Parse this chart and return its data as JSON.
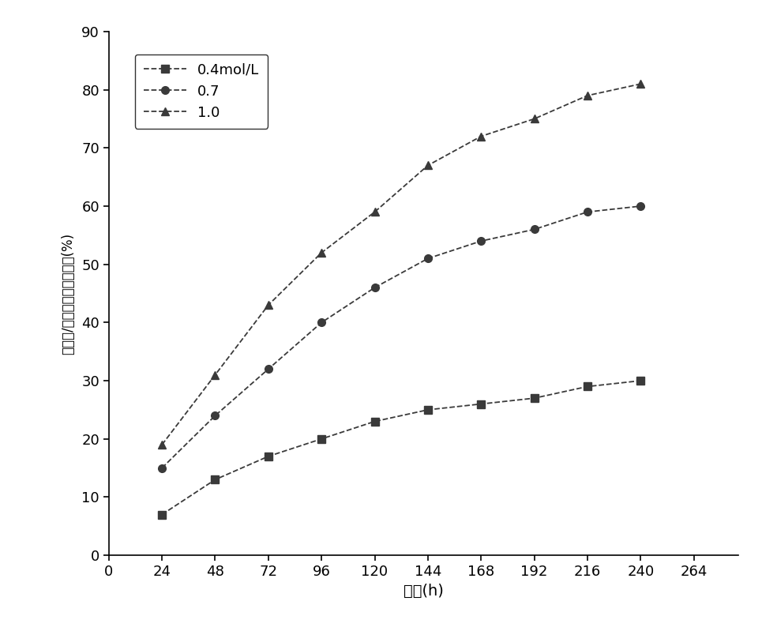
{
  "x": [
    24,
    48,
    72,
    96,
    120,
    144,
    168,
    192,
    216,
    240
  ],
  "y_04": [
    7,
    13,
    17,
    20,
    23,
    25,
    26,
    27,
    29,
    30
  ],
  "y_07": [
    15,
    24,
    32,
    40,
    46,
    51,
    54,
    56,
    59,
    60
  ],
  "y_10": [
    19,
    31,
    43,
    52,
    59,
    67,
    72,
    75,
    79,
    81
  ],
  "xlabel": "时间(h)",
  "ylabel_chars": [
    "麦",
    "秸",
    "粉",
    "/",
    "聚",
    "乳",
    "酸",
    "线",
    "材",
    "降",
    "解",
    "质",
    "量",
    "(",
    "%",
    ")"
  ],
  "ylabel": "麦秸粉/聚乳酸线材降解质量(%)",
  "legend_04": "0.4mol/L",
  "legend_07": "0.7",
  "legend_10": "1.0",
  "xlim": [
    0,
    284
  ],
  "ylim": [
    0,
    90
  ],
  "xticks": [
    0,
    24,
    48,
    72,
    96,
    120,
    144,
    168,
    192,
    216,
    240,
    264
  ],
  "yticks": [
    0,
    10,
    20,
    30,
    40,
    50,
    60,
    70,
    80,
    90
  ],
  "line_color": "#3a3a3a",
  "marker_color": "#3a3a3a",
  "figsize": [
    9.84,
    7.99
  ],
  "dpi": 100
}
